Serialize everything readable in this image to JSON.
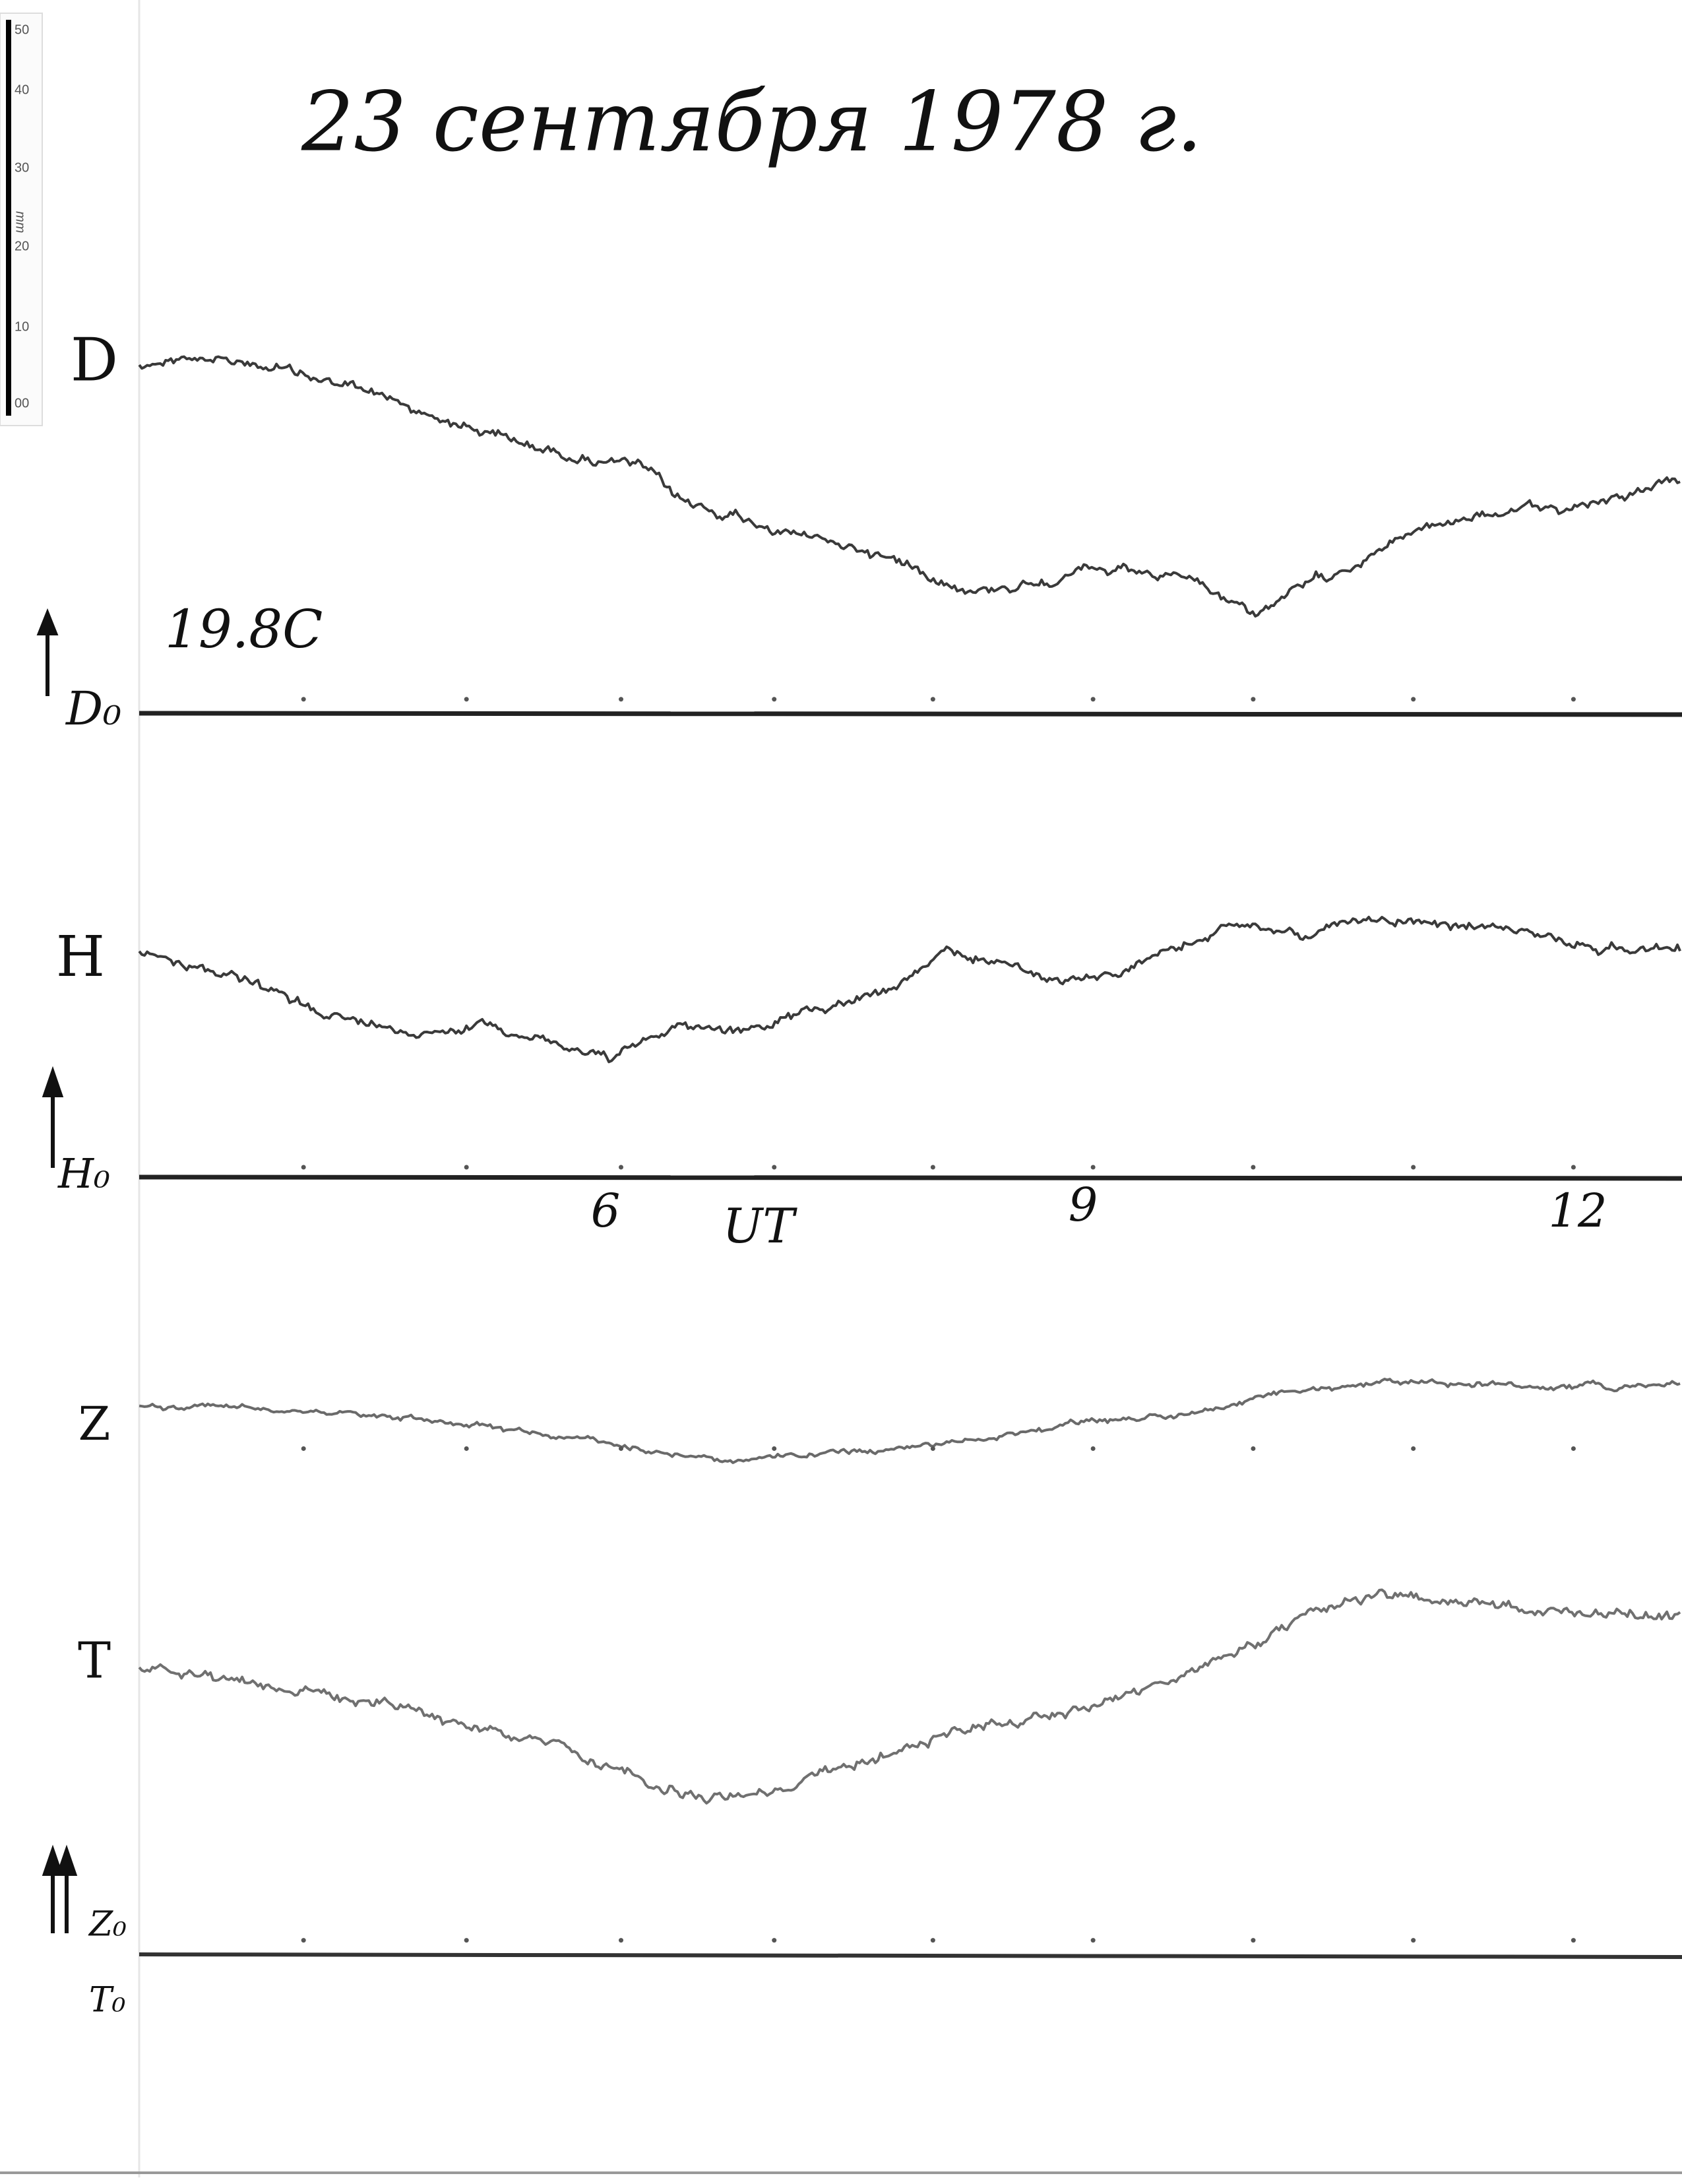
{
  "title": "23 сентября 1978 г.",
  "ruler": {
    "ticks": [
      "50",
      "40",
      "30",
      "20",
      "10",
      "00"
    ],
    "unit": "mm"
  },
  "temperature": "19.8C",
  "traces": [
    {
      "label": "D",
      "baseline": "D₀"
    },
    {
      "label": "H",
      "baseline": "H₀"
    },
    {
      "label": "Z",
      "baseline": "Z₀"
    },
    {
      "label": "T",
      "baseline": "T₀"
    }
  ],
  "time_axis": {
    "labels": [
      "6",
      "9",
      "12"
    ],
    "unit": "UT"
  }
}
